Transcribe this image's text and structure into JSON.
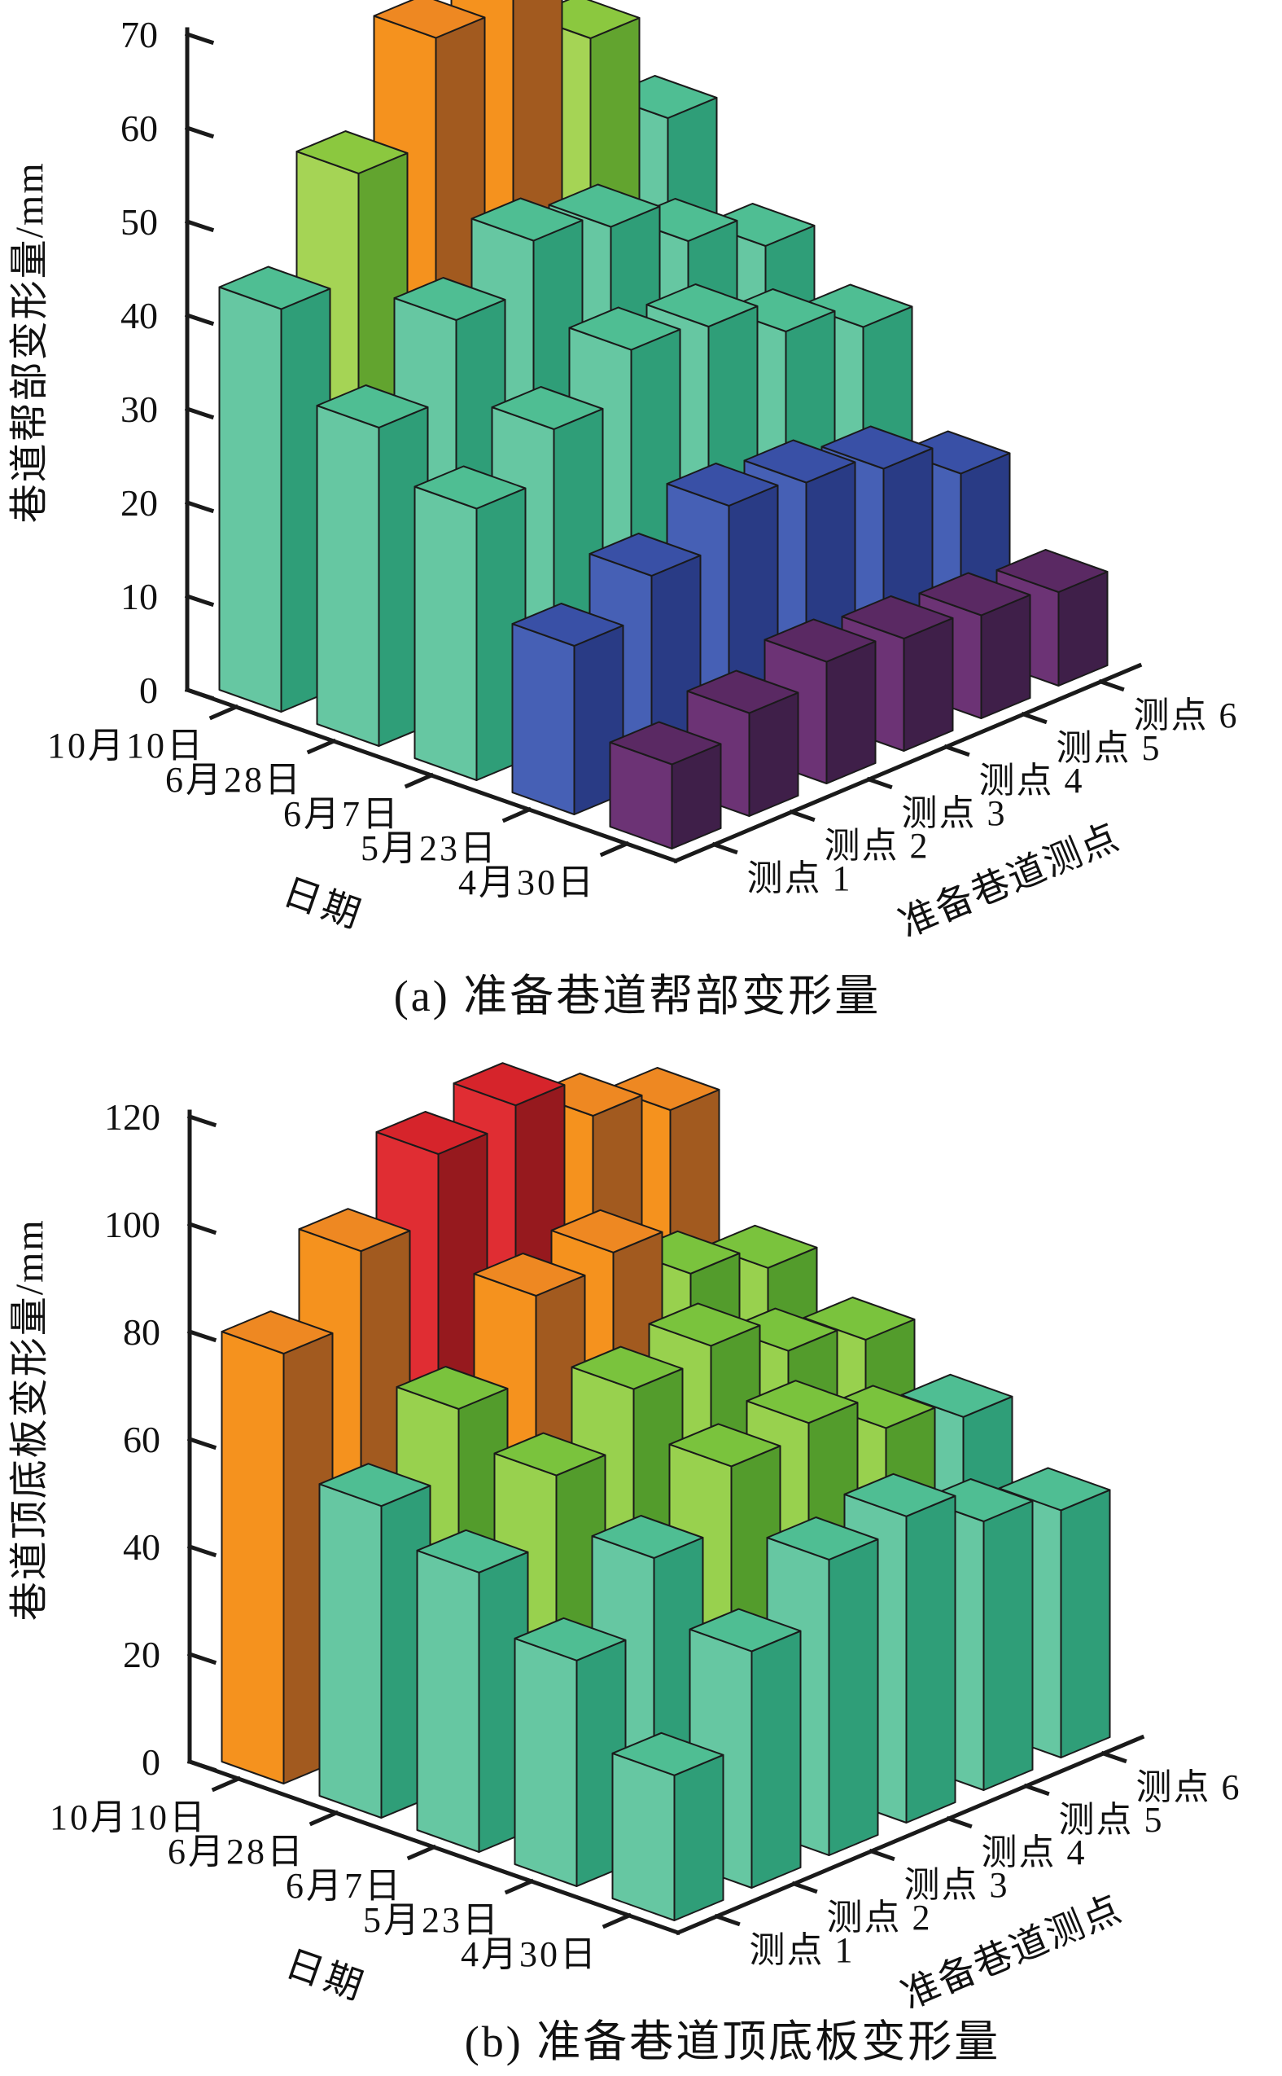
{
  "page": {
    "background": "#ffffff"
  },
  "palette": {
    "teal": {
      "left": "#66C7A2",
      "top": "#4FBE93",
      "right": "#2F9E78"
    },
    "ltgreen": {
      "left": "#A5D455",
      "top": "#8BC83F",
      "right": "#62A42F"
    },
    "green": {
      "left": "#98D14E",
      "top": "#7AC33D",
      "right": "#539C2C"
    },
    "orange": {
      "left": "#F5921E",
      "top": "#EE8822",
      "right": "#A25A1F"
    },
    "red": {
      "left": "#E02D33",
      "top": "#D6242B",
      "right": "#96191E"
    },
    "blue": {
      "left": "#4660B5",
      "top": "#3950A6",
      "right": "#293B85"
    },
    "purple": {
      "left": "#6C3375",
      "top": "#5A2963",
      "right": "#3F1F49"
    }
  },
  "chart_data": [
    {
      "id": "a",
      "type": "bar",
      "projection": "3d",
      "caption": "(a) 准备巷道帮部变形量",
      "unit": "mm",
      "grid": false,
      "legend": "none",
      "y_axis": {
        "label": "巷道帮部变形量/mm",
        "min": 0,
        "max": 70,
        "tick_step": 10,
        "ticks": [
          0,
          10,
          20,
          30,
          40,
          50,
          60,
          70
        ]
      },
      "date_axis": {
        "label": "日期",
        "categories": [
          "10月10日",
          "6月28日",
          "6月7日",
          "5月23日",
          "4月30日"
        ]
      },
      "point_axis": {
        "label": "准备巷道测点",
        "categories": [
          "测点 1",
          "测点 2",
          "测点 3",
          "测点 4",
          "测点 5",
          "测点 6"
        ]
      },
      "series": [
        {
          "date": "10月10日",
          "values": [
            43,
            54,
            65,
            67,
            58,
            46
          ],
          "colors": [
            "teal",
            "ltgreen",
            "orange",
            "orange",
            "ltgreen",
            "teal"
          ]
        },
        {
          "date": "6月28日",
          "values": [
            34,
            42,
            47,
            45,
            40,
            36
          ],
          "colors": [
            "teal",
            "teal",
            "teal",
            "teal",
            "teal",
            "teal"
          ]
        },
        {
          "date": "6月7日",
          "values": [
            29,
            34,
            39,
            38,
            34,
            31
          ],
          "colors": [
            "teal",
            "teal",
            "teal",
            "teal",
            "teal",
            "teal"
          ]
        },
        {
          "date": "5月23日",
          "values": [
            18,
            22,
            26,
            25,
            23,
            19
          ],
          "colors": [
            "blue",
            "blue",
            "blue",
            "blue",
            "blue",
            "blue"
          ]
        },
        {
          "date": "4月30日",
          "values": [
            9,
            11,
            13,
            12,
            11,
            10
          ],
          "colors": [
            "purple",
            "purple",
            "purple",
            "purple",
            "purple",
            "purple"
          ]
        }
      ]
    },
    {
      "id": "b",
      "type": "bar",
      "projection": "3d",
      "caption": "(b) 准备巷道顶底板变形量",
      "unit": "mm",
      "grid": false,
      "legend": "none",
      "y_axis": {
        "label": "巷道顶底板变形量/mm",
        "min": 0,
        "max": 120,
        "tick_step": 20,
        "ticks": [
          0,
          20,
          40,
          60,
          80,
          100,
          120
        ]
      },
      "date_axis": {
        "label": "日期",
        "categories": [
          "10月10日",
          "6月28日",
          "6月7日",
          "5月23日",
          "4月30日"
        ]
      },
      "point_axis": {
        "label": "准备巷道测点",
        "categories": [
          "测点 1",
          "测点 2",
          "测点 3",
          "测点 4",
          "测点 5",
          "测点 6"
        ]
      },
      "series": [
        {
          "date": "10月10日",
          "values": [
            80,
            93,
            105,
            108,
            100,
            95
          ],
          "colors": [
            "orange",
            "orange",
            "red",
            "red",
            "orange",
            "orange"
          ]
        },
        {
          "date": "6月28日",
          "values": [
            58,
            70,
            85,
            87,
            77,
            72
          ],
          "colors": [
            "teal",
            "green",
            "orange",
            "orange",
            "green",
            "green"
          ]
        },
        {
          "date": "6月7日",
          "values": [
            52,
            64,
            74,
            76,
            69,
            65
          ],
          "colors": [
            "teal",
            "green",
            "green",
            "green",
            "green",
            "green"
          ]
        },
        {
          "date": "5月23日",
          "values": [
            42,
            55,
            66,
            68,
            61,
            57
          ],
          "colors": [
            "teal",
            "teal",
            "green",
            "green",
            "green",
            "teal"
          ]
        },
        {
          "date": "4月30日",
          "values": [
            27,
            44,
            55,
            57,
            50,
            46
          ],
          "colors": [
            "teal",
            "teal",
            "teal",
            "teal",
            "teal",
            "teal"
          ]
        }
      ]
    }
  ]
}
